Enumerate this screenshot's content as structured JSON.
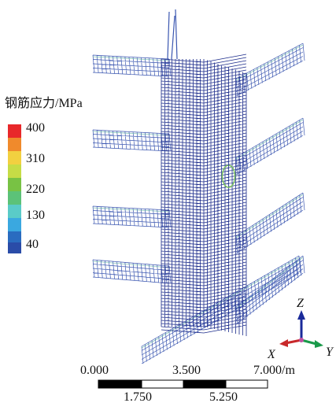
{
  "legend": {
    "title": "钢筋应力/MPa",
    "labels": [
      "400",
      "310",
      "220",
      "130",
      "40"
    ]
  },
  "axes": {
    "z": "Z",
    "x": "X",
    "y": "Y"
  },
  "scale_bar": {
    "top_labels": [
      "0.000",
      "3.500",
      "7.000/m"
    ],
    "bottom_labels": [
      "1.750",
      "5.250"
    ]
  }
}
